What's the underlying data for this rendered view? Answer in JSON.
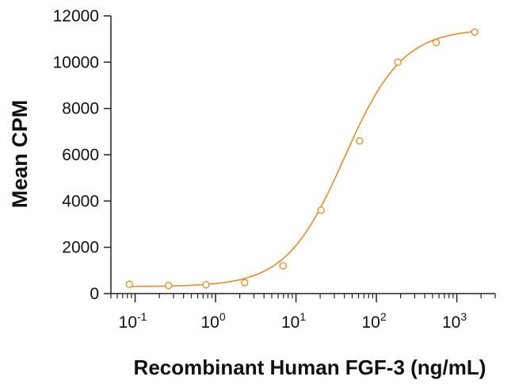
{
  "chart_data": {
    "type": "scatter",
    "title": "",
    "xlabel": "Recombinant Human FGF-3 (ng/mL)",
    "ylabel": "Mean CPM",
    "x_scale": "log",
    "xlim": [
      0.05,
      3000
    ],
    "ylim": [
      0,
      12000
    ],
    "y_ticks": [
      0,
      2000,
      4000,
      6000,
      8000,
      10000,
      12000
    ],
    "y_tick_labels": [
      "0",
      "2000",
      "4000",
      "6000",
      "8000",
      "10000",
      "12000"
    ],
    "x_ticks": [
      {
        "value": 0.1,
        "base": "10",
        "exp": "-1"
      },
      {
        "value": 1,
        "base": "10",
        "exp": "0"
      },
      {
        "value": 10,
        "base": "10",
        "exp": "1"
      },
      {
        "value": 100,
        "base": "10",
        "exp": "2"
      },
      {
        "value": 1000,
        "base": "10",
        "exp": "3"
      }
    ],
    "grid": false,
    "legend": "none",
    "series": [
      {
        "name": "Mean CPM",
        "color": "#e8892f",
        "x": [
          0.085,
          0.26,
          0.76,
          2.3,
          6.9,
          20.5,
          62,
          185,
          555,
          1670
        ],
        "y": [
          400,
          350,
          380,
          470,
          1200,
          3600,
          6600,
          10000,
          10850,
          11300
        ]
      }
    ],
    "fit": {
      "model": "4PL",
      "bottom": 300,
      "top": 11450,
      "ec50": 40,
      "hill": 1.2,
      "color": "#e8892f"
    }
  }
}
